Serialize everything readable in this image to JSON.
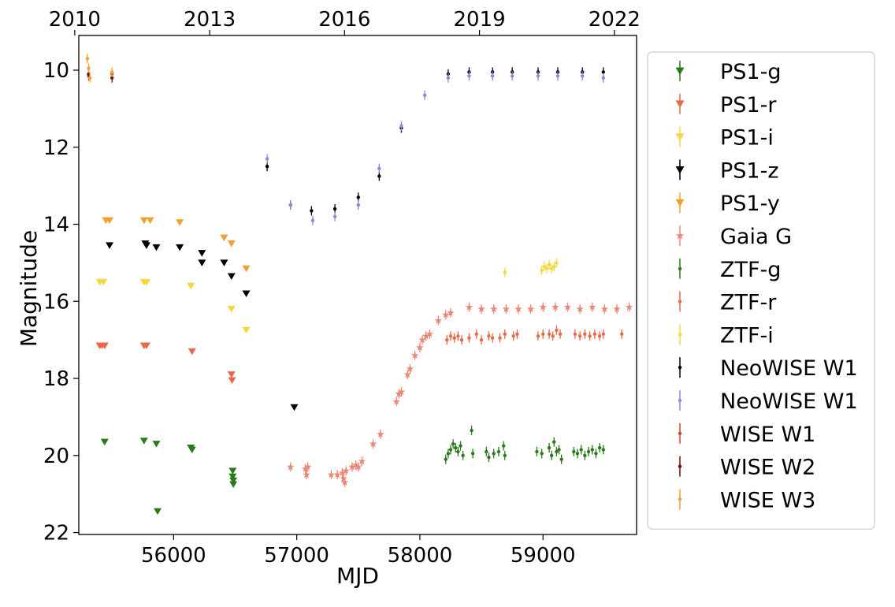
{
  "chart_data": {
    "type": "scatter",
    "title": "",
    "xlabel": "MJD",
    "ylabel": "Magnitude",
    "xlim": [
      55230,
      59760
    ],
    "ylim": [
      22.05,
      9.1
    ],
    "y_inverted": true,
    "x_ticks": [
      56000,
      57000,
      58000,
      59000
    ],
    "x_tick_labels": [
      "56000",
      "57000",
      "58000",
      "59000"
    ],
    "y_ticks": [
      10,
      12,
      14,
      16,
      18,
      20,
      22
    ],
    "y_tick_labels": [
      "10",
      "12",
      "14",
      "16",
      "18",
      "20",
      "22"
    ],
    "top_axis": {
      "label": "",
      "ticks": [
        55197,
        56293,
        57388,
        58484,
        59580
      ],
      "tick_labels": [
        "2010",
        "2013",
        "2016",
        "2019",
        "2022"
      ]
    },
    "legend_position": "outside right",
    "series": [
      {
        "name": "PS1-g",
        "color": "#2a7a1a",
        "marker": "triangle-down",
        "upper_limit": true,
        "points": [
          [
            55440,
            19.65
          ],
          [
            55760,
            19.62
          ],
          [
            55860,
            19.7
          ],
          [
            55870,
            21.45
          ],
          [
            56140,
            19.8
          ],
          [
            56150,
            19.85
          ],
          [
            56480,
            20.4
          ],
          [
            56480,
            20.55
          ],
          [
            56485,
            20.65
          ],
          [
            56485,
            20.75
          ]
        ]
      },
      {
        "name": "PS1-r",
        "color": "#e8694a",
        "marker": "triangle-down",
        "upper_limit": true,
        "points": [
          [
            55400,
            17.15
          ],
          [
            55420,
            17.15
          ],
          [
            55440,
            17.15
          ],
          [
            55760,
            17.15
          ],
          [
            55780,
            17.15
          ],
          [
            56150,
            17.3
          ],
          [
            56470,
            17.9
          ],
          [
            56475,
            18.05
          ]
        ]
      },
      {
        "name": "PS1-i",
        "color": "#f5d742",
        "marker": "triangle-down",
        "upper_limit": true,
        "points": [
          [
            55400,
            15.5
          ],
          [
            55430,
            15.5
          ],
          [
            55760,
            15.5
          ],
          [
            55780,
            15.5
          ],
          [
            56140,
            15.6
          ],
          [
            56470,
            16.2
          ],
          [
            56590,
            16.75
          ]
        ]
      },
      {
        "name": "PS1-z",
        "color": "#000000",
        "marker": "triangle-down",
        "upper_limit": true,
        "points": [
          [
            55480,
            14.55
          ],
          [
            55770,
            14.5
          ],
          [
            55780,
            14.55
          ],
          [
            55860,
            14.6
          ],
          [
            56050,
            14.6
          ],
          [
            56230,
            14.75
          ],
          [
            56230,
            15.0
          ],
          [
            56410,
            15.0
          ],
          [
            56470,
            15.35
          ],
          [
            56590,
            15.8
          ],
          [
            56980,
            18.75
          ]
        ]
      },
      {
        "name": "PS1-y",
        "color": "#f0a030",
        "marker": "triangle-down",
        "upper_limit": true,
        "points": [
          [
            55450,
            13.9
          ],
          [
            55480,
            13.9
          ],
          [
            55760,
            13.9
          ],
          [
            55810,
            13.9
          ],
          [
            56050,
            13.95
          ],
          [
            56410,
            14.35
          ],
          [
            56470,
            14.5
          ],
          [
            56590,
            15.15
          ]
        ]
      },
      {
        "name": "Gaia G",
        "color": "#e88a78",
        "marker": "star",
        "points": [
          [
            56950,
            20.3
          ],
          [
            57070,
            20.35
          ],
          [
            57080,
            20.5
          ],
          [
            57090,
            20.3
          ],
          [
            57280,
            20.5
          ],
          [
            57330,
            20.5
          ],
          [
            57370,
            20.45
          ],
          [
            57380,
            20.6
          ],
          [
            57390,
            20.7
          ],
          [
            57400,
            20.4
          ],
          [
            57450,
            20.3
          ],
          [
            57480,
            20.25
          ],
          [
            57500,
            20.3
          ],
          [
            57530,
            20.15
          ],
          [
            57620,
            19.7
          ],
          [
            57680,
            19.45
          ],
          [
            57810,
            18.6
          ],
          [
            57830,
            18.4
          ],
          [
            57850,
            18.35
          ],
          [
            57900,
            17.9
          ],
          [
            57920,
            17.75
          ],
          [
            57960,
            17.4
          ],
          [
            58000,
            17.2
          ],
          [
            58020,
            17.0
          ],
          [
            58050,
            16.9
          ],
          [
            58080,
            16.85
          ],
          [
            58150,
            16.5
          ],
          [
            58210,
            16.35
          ],
          [
            58250,
            16.3
          ],
          [
            58400,
            16.15
          ],
          [
            58500,
            16.2
          ],
          [
            58600,
            16.2
          ],
          [
            58700,
            16.2
          ],
          [
            58800,
            16.2
          ],
          [
            58900,
            16.2
          ],
          [
            59000,
            16.15
          ],
          [
            59100,
            16.15
          ],
          [
            59200,
            16.15
          ],
          [
            59300,
            16.2
          ],
          [
            59400,
            16.15
          ],
          [
            59500,
            16.2
          ],
          [
            59600,
            16.2
          ],
          [
            59700,
            16.15
          ]
        ]
      },
      {
        "name": "ZTF-g",
        "color": "#2a7a1a",
        "marker": "dot",
        "points": [
          [
            58210,
            20.1
          ],
          [
            58230,
            19.95
          ],
          [
            58250,
            19.85
          ],
          [
            58270,
            19.7
          ],
          [
            58290,
            19.8
          ],
          [
            58310,
            19.9
          ],
          [
            58330,
            19.75
          ],
          [
            58350,
            20.0
          ],
          [
            58420,
            19.35
          ],
          [
            58430,
            19.95
          ],
          [
            58540,
            19.9
          ],
          [
            58560,
            20.05
          ],
          [
            58600,
            19.95
          ],
          [
            58640,
            19.9
          ],
          [
            58680,
            19.75
          ],
          [
            58690,
            20.0
          ],
          [
            58950,
            19.9
          ],
          [
            58990,
            19.95
          ],
          [
            59050,
            19.8
          ],
          [
            59070,
            20.0
          ],
          [
            59090,
            19.65
          ],
          [
            59110,
            19.9
          ],
          [
            59130,
            19.85
          ],
          [
            59150,
            20.1
          ],
          [
            59250,
            19.9
          ],
          [
            59280,
            19.95
          ],
          [
            59310,
            19.85
          ],
          [
            59340,
            20.0
          ],
          [
            59370,
            19.9
          ],
          [
            59400,
            19.85
          ],
          [
            59430,
            19.95
          ],
          [
            59460,
            19.8
          ],
          [
            59490,
            19.85
          ]
        ]
      },
      {
        "name": "ZTF-r",
        "color": "#e8694a",
        "marker": "dot",
        "points": [
          [
            58220,
            17.0
          ],
          [
            58250,
            16.9
          ],
          [
            58280,
            16.95
          ],
          [
            58310,
            16.9
          ],
          [
            58340,
            17.0
          ],
          [
            58400,
            16.95
          ],
          [
            58460,
            16.85
          ],
          [
            58500,
            17.0
          ],
          [
            58560,
            16.9
          ],
          [
            58590,
            16.95
          ],
          [
            58650,
            16.95
          ],
          [
            58690,
            16.85
          ],
          [
            58760,
            16.9
          ],
          [
            58790,
            16.85
          ],
          [
            58960,
            16.9
          ],
          [
            59000,
            16.85
          ],
          [
            59050,
            16.85
          ],
          [
            59080,
            16.9
          ],
          [
            59110,
            16.75
          ],
          [
            59140,
            16.85
          ],
          [
            59260,
            16.85
          ],
          [
            59300,
            16.9
          ],
          [
            59340,
            16.85
          ],
          [
            59380,
            16.9
          ],
          [
            59420,
            16.85
          ],
          [
            59460,
            16.9
          ],
          [
            59490,
            16.85
          ],
          [
            59640,
            16.85
          ]
        ]
      },
      {
        "name": "ZTF-i",
        "color": "#f5d742",
        "marker": "dot",
        "points": [
          [
            58690,
            15.25
          ],
          [
            58990,
            15.2
          ],
          [
            59010,
            15.1
          ],
          [
            59030,
            15.15
          ],
          [
            59050,
            15.05
          ],
          [
            59070,
            15.15
          ],
          [
            59090,
            15.1
          ],
          [
            59110,
            15.0
          ]
        ]
      },
      {
        "name": "NeoWISE W1",
        "color": "#000000",
        "marker": "dot",
        "points": [
          [
            56760,
            12.5
          ],
          [
            56950,
            13.5
          ],
          [
            57120,
            13.65
          ],
          [
            57310,
            13.6
          ],
          [
            57500,
            13.3
          ],
          [
            57670,
            12.75
          ],
          [
            57850,
            11.5
          ],
          [
            58230,
            10.1
          ],
          [
            58400,
            10.05
          ],
          [
            58590,
            10.05
          ],
          [
            58750,
            10.05
          ],
          [
            58960,
            10.05
          ],
          [
            59120,
            10.05
          ],
          [
            59320,
            10.05
          ],
          [
            59490,
            10.05
          ]
        ]
      },
      {
        "name": "NeoWISE W1",
        "color": "#9a82d8",
        "marker": "dot",
        "points": [
          [
            56760,
            12.3
          ],
          [
            56950,
            13.5
          ],
          [
            57130,
            13.9
          ],
          [
            57310,
            13.8
          ],
          [
            57500,
            13.5
          ],
          [
            57670,
            12.55
          ],
          [
            57850,
            11.45
          ],
          [
            58040,
            10.65
          ],
          [
            58230,
            10.2
          ],
          [
            58400,
            10.15
          ],
          [
            58590,
            10.15
          ],
          [
            58750,
            10.15
          ],
          [
            58960,
            10.15
          ],
          [
            59120,
            10.15
          ],
          [
            59320,
            10.15
          ],
          [
            59490,
            10.2
          ]
        ]
      },
      {
        "name": "WISE W1",
        "color": "#d8402a",
        "marker": "dot",
        "points": [
          [
            55310,
            10.15
          ],
          [
            55500,
            10.1
          ]
        ]
      },
      {
        "name": "WISE W2",
        "color": "#6b1010",
        "marker": "dot",
        "points": [
          [
            55310,
            10.1
          ],
          [
            55500,
            10.2
          ]
        ]
      },
      {
        "name": "WISE W3",
        "color": "#f0a030",
        "marker": "dot",
        "points": [
          [
            55300,
            9.7
          ],
          [
            55310,
            9.95
          ],
          [
            55320,
            10.2
          ],
          [
            55500,
            10.05
          ]
        ]
      }
    ]
  }
}
